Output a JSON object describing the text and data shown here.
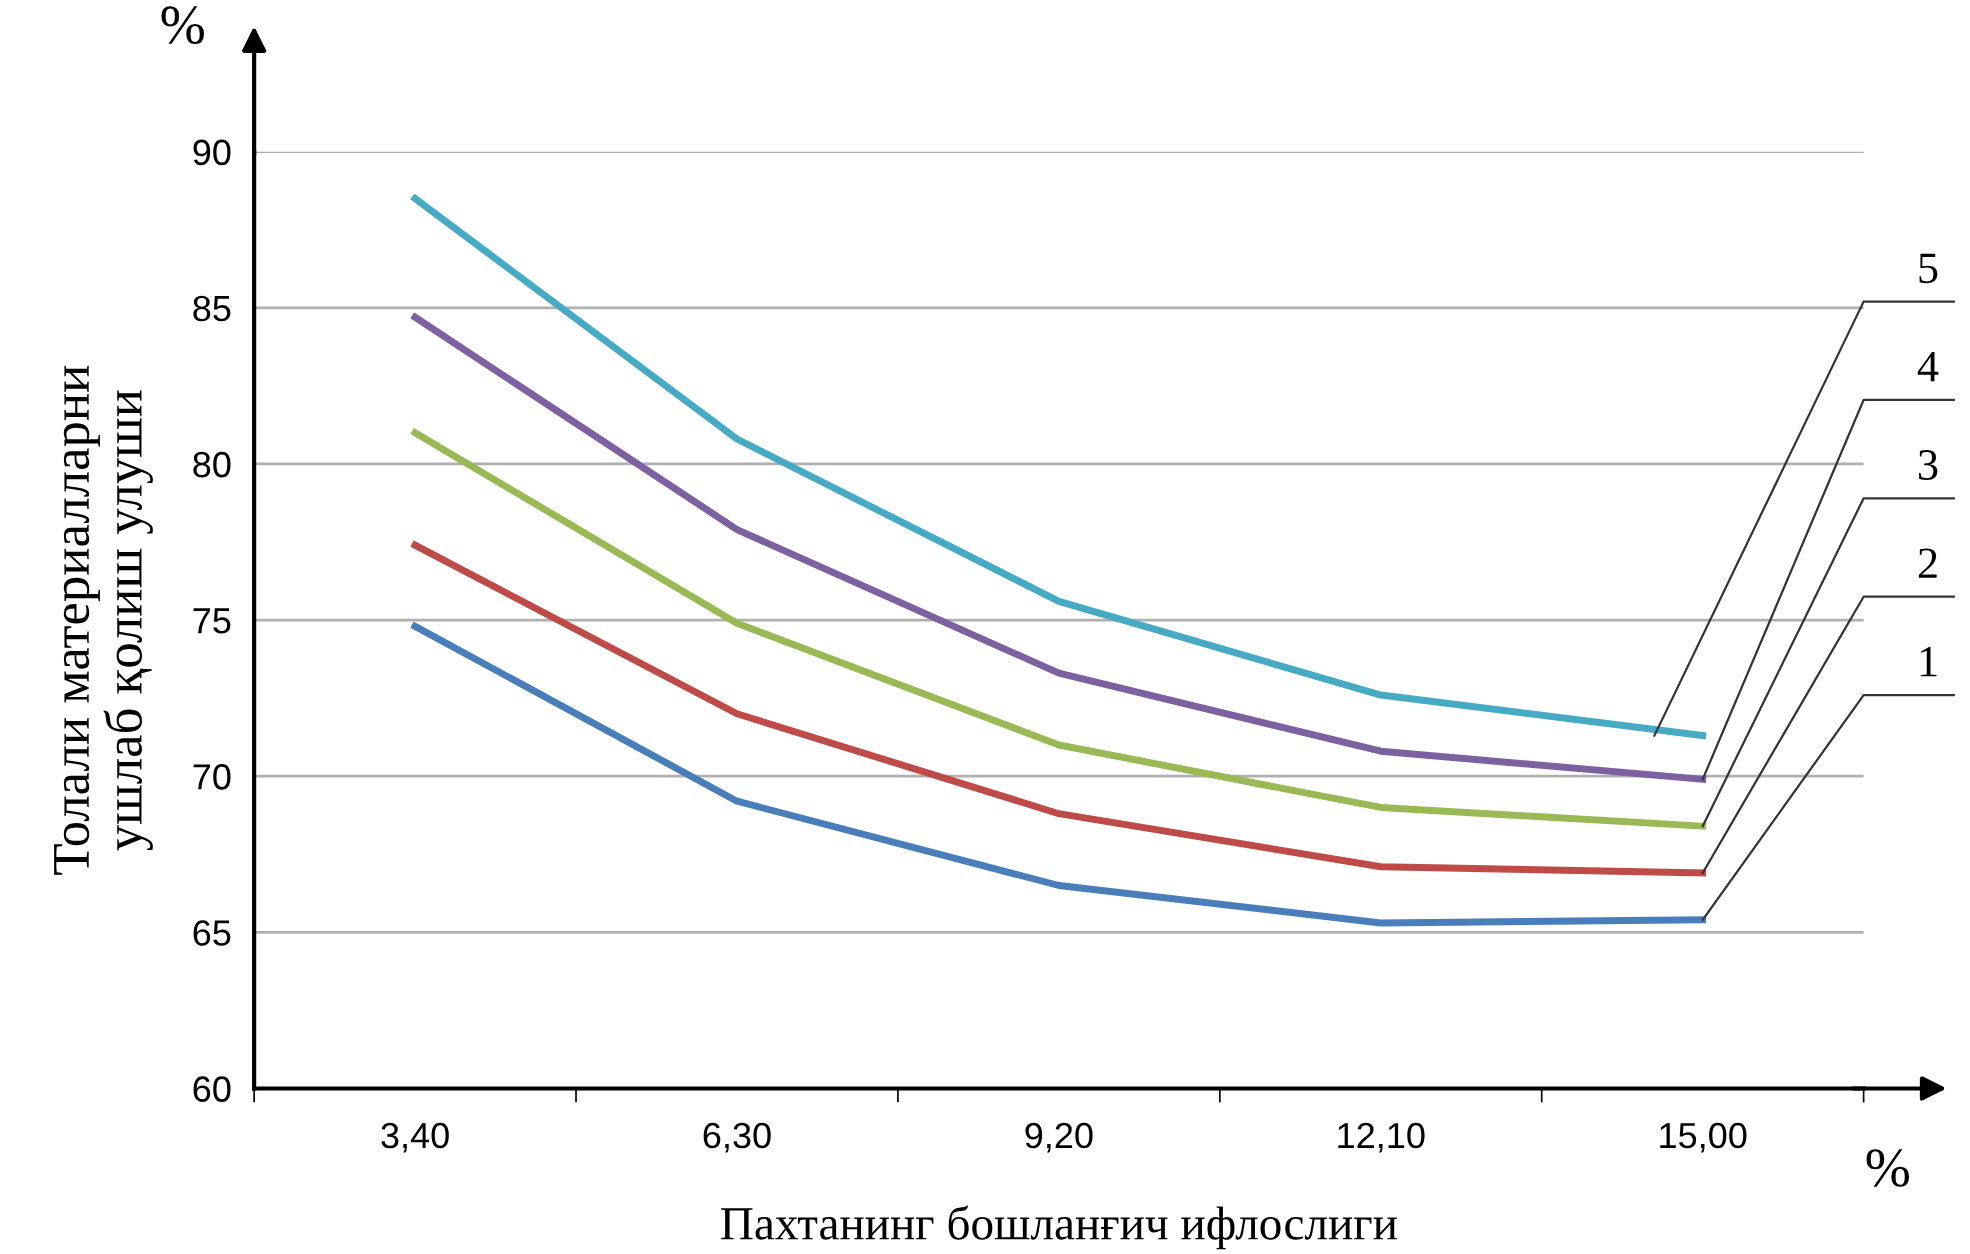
{
  "chart_data": {
    "type": "line",
    "xlabel": "Пахтанинг бошланғич ифлослиги",
    "ylabel": "Толали материалларни\nушлаб қолиш улуши",
    "annotations": [
      "%",
      "%"
    ],
    "categories": [
      "3,40",
      "6,30",
      "9,20",
      "12,10",
      "15,00"
    ],
    "ylim": [
      60,
      90
    ],
    "yticks": [
      60,
      65,
      70,
      75,
      80,
      85,
      90
    ],
    "grid": "y",
    "legend": false,
    "marker": "none",
    "line_style": "solid",
    "series": [
      {
        "name": "1",
        "color": "#4a7ebb",
        "values": [
          74.8,
          69.2,
          66.5,
          65.3,
          65.4
        ]
      },
      {
        "name": "2",
        "color": "#be4b48",
        "values": [
          77.4,
          72.0,
          68.8,
          67.1,
          66.9
        ]
      },
      {
        "name": "3",
        "color": "#98b954",
        "values": [
          81.0,
          74.9,
          71.0,
          69.0,
          68.4
        ]
      },
      {
        "name": "4",
        "color": "#7d60a0",
        "values": [
          84.7,
          77.9,
          73.3,
          70.8,
          69.9
        ]
      },
      {
        "name": "5",
        "color": "#46aac5",
        "values": [
          88.5,
          80.8,
          75.6,
          72.6,
          71.3
        ]
      }
    ]
  }
}
